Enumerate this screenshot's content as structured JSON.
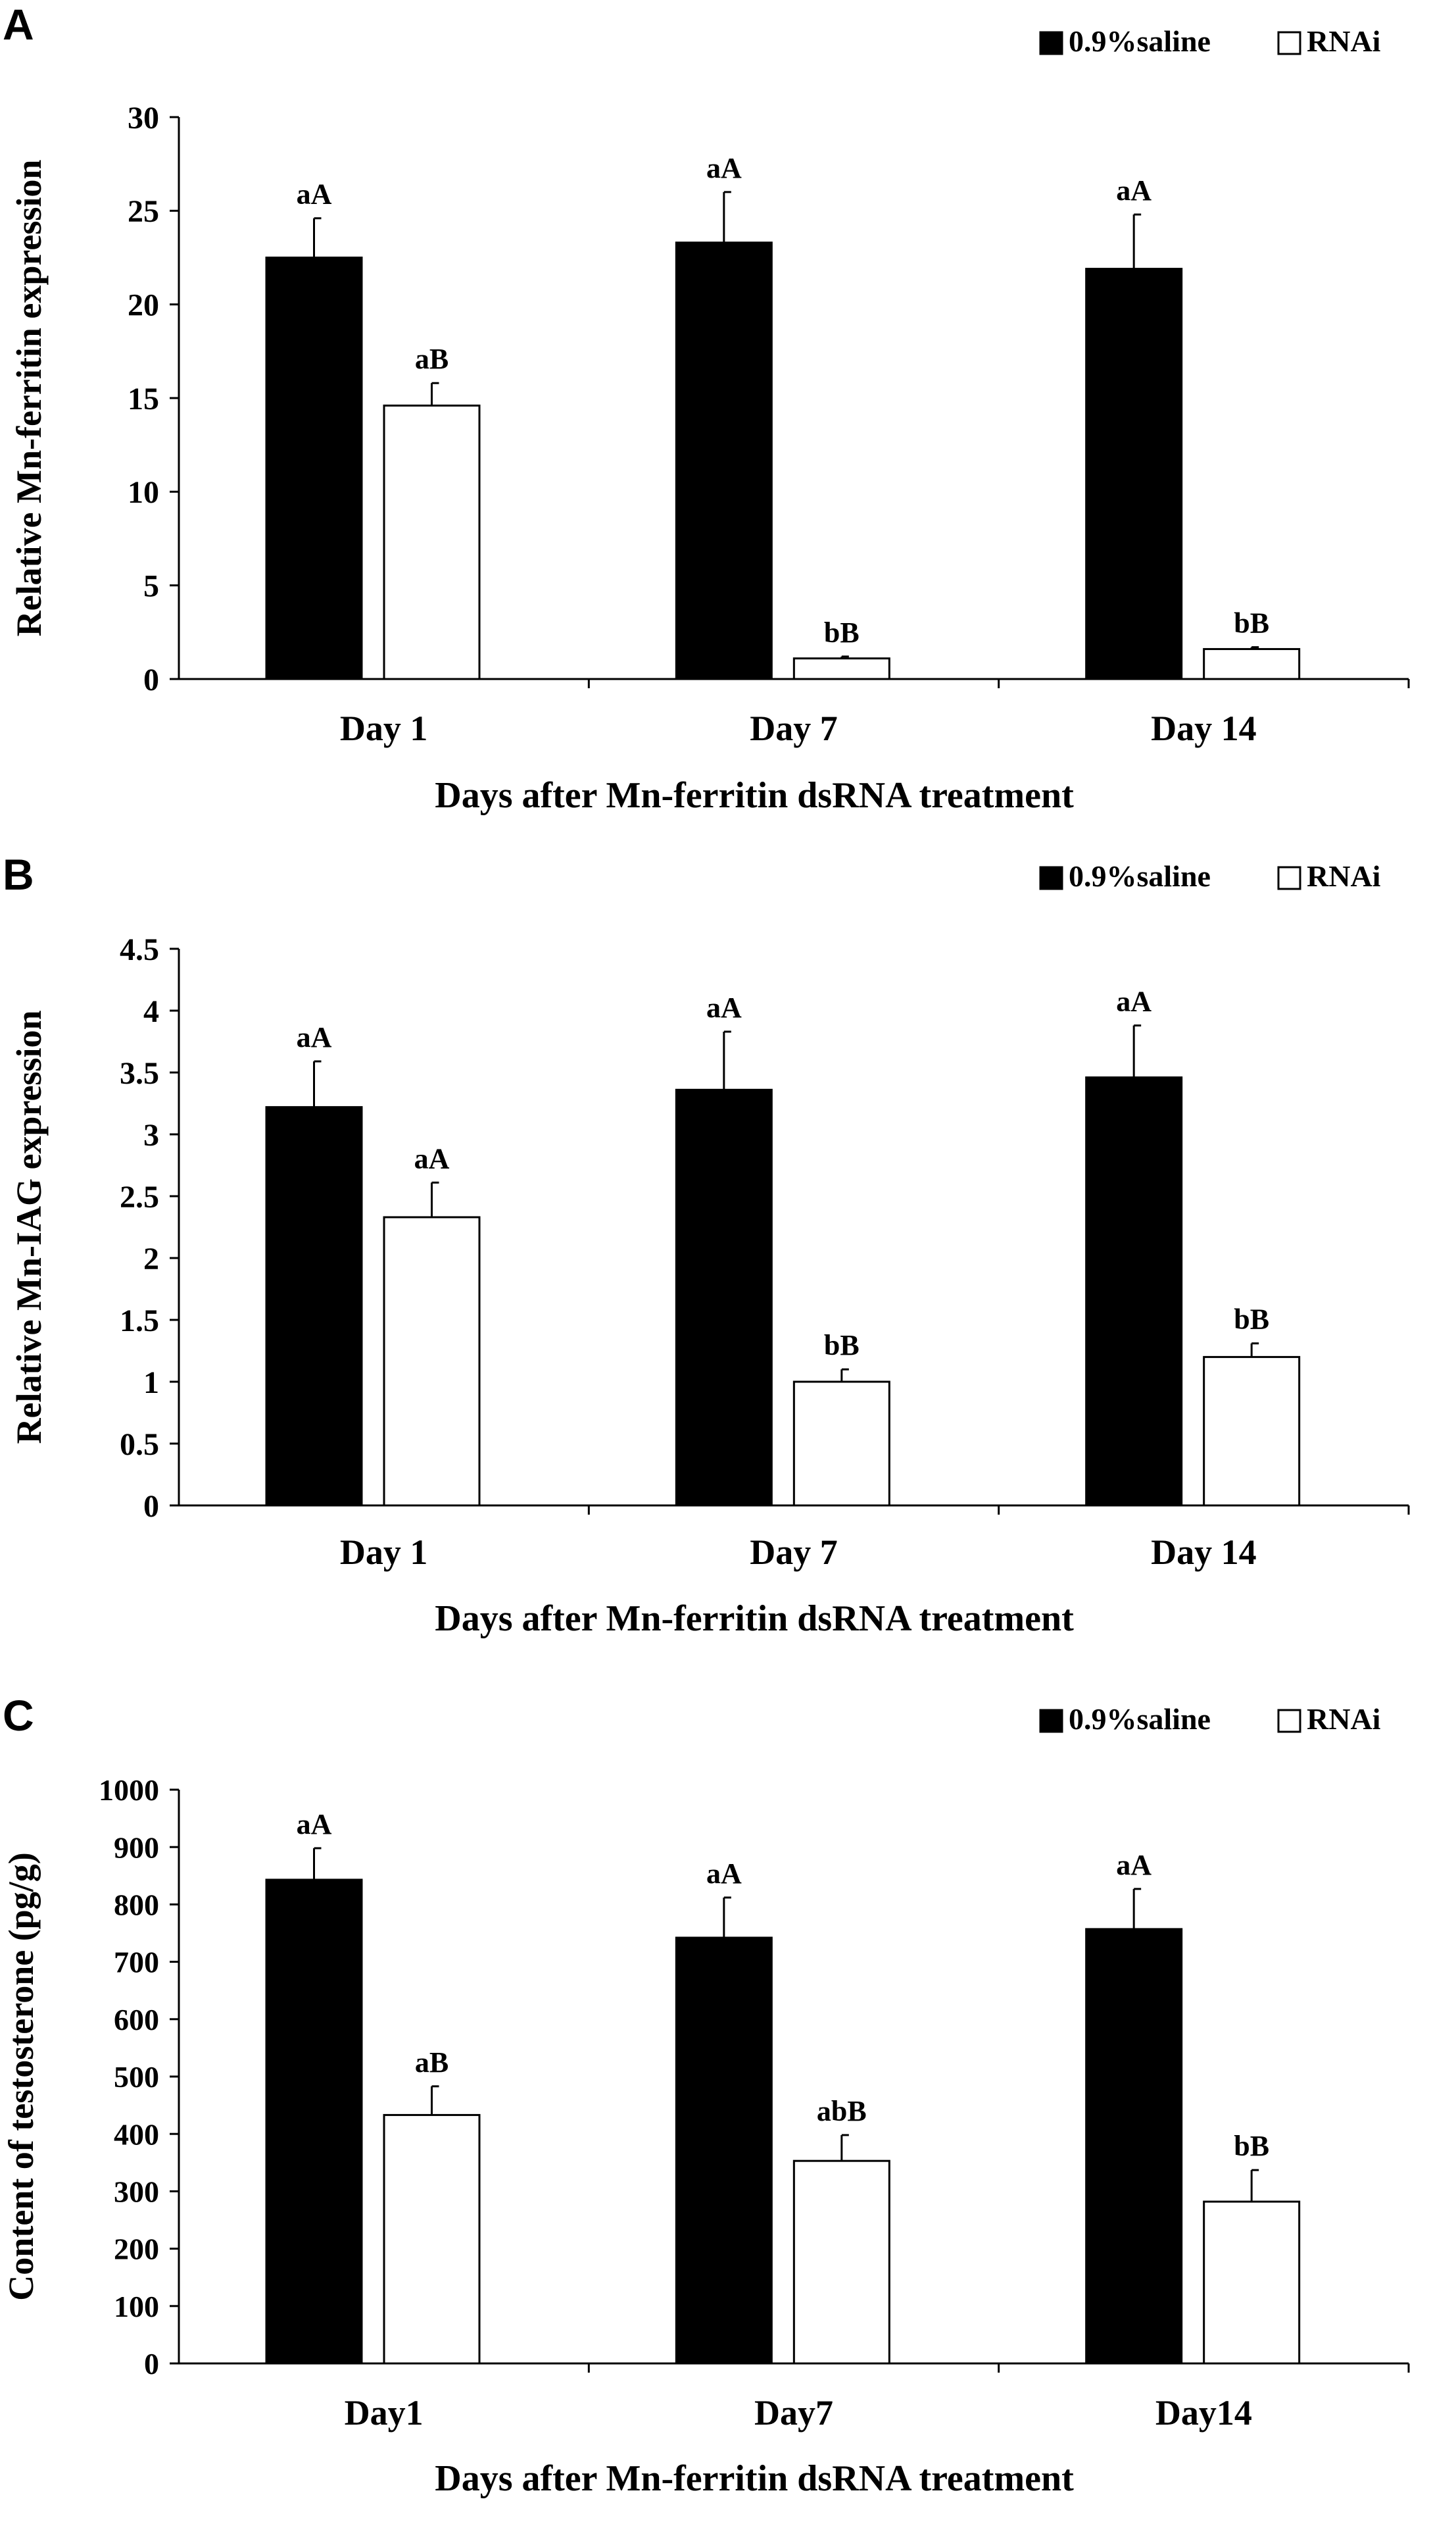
{
  "figure": {
    "panels": [
      "A",
      "B",
      "C"
    ],
    "legend": {
      "series": [
        {
          "name": "0.9%saline",
          "color": "#000000"
        },
        {
          "name": "RNAi",
          "color": "#ffffff"
        }
      ]
    }
  },
  "chart_data": [
    {
      "panel": "A",
      "type": "bar",
      "title": "",
      "categories": [
        "Day 1",
        "Day 7",
        "Day 14"
      ],
      "series": [
        {
          "name": "0.9%saline",
          "values": [
            22.5,
            23.3,
            21.9
          ],
          "errors": [
            2.1,
            2.7,
            2.9
          ],
          "labels": [
            "aA",
            "aA",
            "aA"
          ]
        },
        {
          "name": "RNAi",
          "values": [
            14.6,
            1.1,
            1.6
          ],
          "errors": [
            1.2,
            0.1,
            0.1
          ],
          "labels": [
            "aB",
            "bB",
            "bB"
          ]
        }
      ],
      "xlabel": "Days after Mn-ferritin  dsRNA treatment",
      "ylabel": "Relative Mn-ferritin  expression",
      "ylim": [
        0,
        30
      ],
      "yticks": [
        0,
        5,
        10,
        15,
        20,
        25,
        30
      ],
      "ytick_labels": [
        "0",
        "5",
        "10",
        "15",
        "20",
        "25",
        "30"
      ],
      "grid": false,
      "legend_position": "top-right"
    },
    {
      "panel": "B",
      "type": "bar",
      "title": "",
      "categories": [
        "Day 1",
        "Day 7",
        "Day 14"
      ],
      "series": [
        {
          "name": "0.9%saline",
          "values": [
            3.22,
            3.36,
            3.46
          ],
          "errors": [
            0.37,
            0.47,
            0.42
          ],
          "labels": [
            "aA",
            "aA",
            "aA"
          ]
        },
        {
          "name": "RNAi",
          "values": [
            2.33,
            1.0,
            1.2
          ],
          "errors": [
            0.28,
            0.1,
            0.11
          ],
          "labels": [
            "aA",
            "bB",
            "bB"
          ]
        }
      ],
      "xlabel": "Days after Mn-ferritin  dsRNA treatment",
      "ylabel": "Relative Mn-IAG expression",
      "ylim": [
        0,
        4.5
      ],
      "yticks": [
        0,
        0.5,
        1,
        1.5,
        2,
        2.5,
        3,
        3.5,
        4,
        4.5
      ],
      "ytick_labels": [
        "0",
        "0.5",
        "1",
        "1.5",
        "2",
        "2.5",
        "3",
        "3.5",
        "4",
        "4.5"
      ],
      "grid": false,
      "legend_position": "top-right"
    },
    {
      "panel": "C",
      "type": "bar",
      "title": "",
      "categories": [
        "Day1",
        "Day7",
        "Day14"
      ],
      "series": [
        {
          "name": "0.9%saline",
          "values": [
            843,
            742,
            757
          ],
          "errors": [
            55,
            70,
            70
          ],
          "labels": [
            "aA",
            "aA",
            "aA"
          ]
        },
        {
          "name": "RNAi",
          "values": [
            433,
            353,
            282
          ],
          "errors": [
            50,
            45,
            55
          ],
          "labels": [
            "aB",
            "abB",
            "bB"
          ]
        }
      ],
      "xlabel": "Days after Mn-ferritin  dsRNA treatment",
      "ylabel": "Content of testosterone (pg/g)",
      "ylim": [
        0,
        1000
      ],
      "yticks": [
        0,
        100,
        200,
        300,
        400,
        500,
        600,
        700,
        800,
        900,
        1000
      ],
      "ytick_labels": [
        "0",
        "100",
        "200",
        "300",
        "400",
        "500",
        "600",
        "700",
        "800",
        "900",
        "1000"
      ],
      "grid": false,
      "legend_position": "top-right"
    }
  ]
}
